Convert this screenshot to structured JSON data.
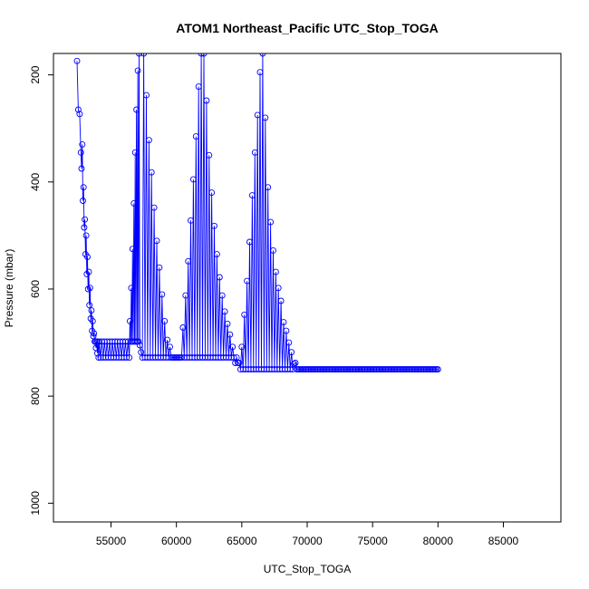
{
  "chart_data": {
    "type": "line",
    "title": "ATOM1 Northeast_Pacific UTC_Stop_TOGA",
    "xlabel": "UTC_Stop_TOGA",
    "ylabel": "Pressure (mbar)",
    "xlim": [
      50600,
      89400
    ],
    "ylim": [
      1035,
      160
    ],
    "y_inverted": true,
    "x_ticks": [
      55000,
      60000,
      65000,
      70000,
      75000,
      80000,
      85000
    ],
    "x_tick_labels": [
      "55000",
      "60000",
      "65000",
      "70000",
      "75000",
      "80000",
      "85000"
    ],
    "y_ticks": [
      200,
      400,
      600,
      800,
      1000
    ],
    "y_tick_labels": [
      "200",
      "400",
      "600",
      "800",
      "1000"
    ],
    "grid": false,
    "series_style": {
      "color": "#0000ff",
      "marker": "open-circle",
      "line": "solid"
    },
    "series": [
      {
        "points": [
          [
            52400,
            174
          ],
          [
            52500,
            265
          ],
          [
            52600,
            273
          ],
          [
            52700,
            345
          ],
          [
            52750,
            375
          ],
          [
            52800,
            330
          ],
          [
            52850,
            435
          ],
          [
            52900,
            410
          ],
          [
            52950,
            485
          ],
          [
            53000,
            470
          ],
          [
            53050,
            535
          ],
          [
            53100,
            500
          ],
          [
            53150,
            572
          ],
          [
            53200,
            540
          ],
          [
            53250,
            600
          ],
          [
            53300,
            568
          ],
          [
            53350,
            630
          ],
          [
            53400,
            598
          ],
          [
            53450,
            655
          ],
          [
            53500,
            640
          ],
          [
            53550,
            678
          ],
          [
            53600,
            660
          ],
          [
            53650,
            688
          ],
          [
            53700,
            683
          ],
          [
            53750,
            698
          ],
          [
            53800,
            698
          ],
          [
            53850,
            710
          ],
          [
            53900,
            698
          ],
          [
            53950,
            720
          ],
          [
            54000,
            698
          ],
          [
            54050,
            728
          ],
          [
            54100,
            698
          ],
          [
            54200,
            728
          ],
          [
            54300,
            698
          ],
          [
            54400,
            728
          ],
          [
            54500,
            698
          ],
          [
            54600,
            728
          ],
          [
            54700,
            698
          ],
          [
            54800,
            728
          ],
          [
            54900,
            698
          ],
          [
            55000,
            728
          ],
          [
            55100,
            698
          ],
          [
            55200,
            728
          ],
          [
            55300,
            698
          ],
          [
            55400,
            728
          ],
          [
            55500,
            698
          ],
          [
            55600,
            728
          ],
          [
            55700,
            698
          ],
          [
            55800,
            728
          ],
          [
            55900,
            698
          ],
          [
            56000,
            728
          ],
          [
            56100,
            698
          ],
          [
            56200,
            728
          ],
          [
            56300,
            698
          ],
          [
            56400,
            728
          ],
          [
            56450,
            660
          ],
          [
            56500,
            698
          ],
          [
            56550,
            598
          ],
          [
            56600,
            698
          ],
          [
            56650,
            525
          ],
          [
            56700,
            698
          ],
          [
            56750,
            440
          ],
          [
            56800,
            698
          ],
          [
            56850,
            345
          ],
          [
            56900,
            698
          ],
          [
            56950,
            265
          ],
          [
            57000,
            698
          ],
          [
            57050,
            192
          ],
          [
            57100,
            698
          ],
          [
            57150,
            160
          ],
          [
            57200,
            705
          ],
          [
            57300,
            718
          ],
          [
            57400,
            728
          ],
          [
            57500,
            160
          ],
          [
            57600,
            728
          ],
          [
            57700,
            238
          ],
          [
            57800,
            728
          ],
          [
            57900,
            322
          ],
          [
            58000,
            728
          ],
          [
            58100,
            382
          ],
          [
            58200,
            728
          ],
          [
            58300,
            448
          ],
          [
            58400,
            728
          ],
          [
            58500,
            510
          ],
          [
            58600,
            728
          ],
          [
            58700,
            560
          ],
          [
            58800,
            728
          ],
          [
            58900,
            610
          ],
          [
            59000,
            728
          ],
          [
            59100,
            660
          ],
          [
            59200,
            728
          ],
          [
            59300,
            695
          ],
          [
            59400,
            728
          ],
          [
            59500,
            708
          ],
          [
            59600,
            728
          ],
          [
            59700,
            728
          ],
          [
            59800,
            728
          ],
          [
            59900,
            728
          ],
          [
            60000,
            728
          ],
          [
            60100,
            728
          ],
          [
            60200,
            728
          ],
          [
            60300,
            728
          ],
          [
            60400,
            728
          ],
          [
            60500,
            672
          ],
          [
            60600,
            728
          ],
          [
            60700,
            612
          ],
          [
            60800,
            728
          ],
          [
            60900,
            548
          ],
          [
            61000,
            728
          ],
          [
            61100,
            472
          ],
          [
            61200,
            728
          ],
          [
            61300,
            395
          ],
          [
            61400,
            728
          ],
          [
            61500,
            315
          ],
          [
            61600,
            728
          ],
          [
            61700,
            222
          ],
          [
            61800,
            728
          ],
          [
            61900,
            160
          ],
          [
            62000,
            728
          ],
          [
            62100,
            160
          ],
          [
            62200,
            728
          ],
          [
            62300,
            248
          ],
          [
            62400,
            728
          ],
          [
            62500,
            350
          ],
          [
            62600,
            728
          ],
          [
            62700,
            420
          ],
          [
            62800,
            728
          ],
          [
            62900,
            482
          ],
          [
            63000,
            728
          ],
          [
            63100,
            535
          ],
          [
            63200,
            728
          ],
          [
            63300,
            578
          ],
          [
            63400,
            728
          ],
          [
            63500,
            612
          ],
          [
            63600,
            728
          ],
          [
            63700,
            642
          ],
          [
            63800,
            728
          ],
          [
            63900,
            665
          ],
          [
            64000,
            728
          ],
          [
            64100,
            685
          ],
          [
            64200,
            728
          ],
          [
            64300,
            708
          ],
          [
            64400,
            728
          ],
          [
            64500,
            738
          ],
          [
            64600,
            728
          ],
          [
            64700,
            738
          ],
          [
            64800,
            738
          ],
          [
            64900,
            750
          ],
          [
            65000,
            708
          ],
          [
            65100,
            750
          ],
          [
            65200,
            648
          ],
          [
            65300,
            750
          ],
          [
            65400,
            585
          ],
          [
            65500,
            750
          ],
          [
            65600,
            512
          ],
          [
            65700,
            750
          ],
          [
            65800,
            425
          ],
          [
            65900,
            750
          ],
          [
            66000,
            345
          ],
          [
            66100,
            750
          ],
          [
            66200,
            275
          ],
          [
            66300,
            750
          ],
          [
            66400,
            195
          ],
          [
            66500,
            750
          ],
          [
            66600,
            160
          ],
          [
            66700,
            750
          ],
          [
            66800,
            280
          ],
          [
            66900,
            750
          ],
          [
            67000,
            410
          ],
          [
            67100,
            750
          ],
          [
            67200,
            475
          ],
          [
            67300,
            750
          ],
          [
            67400,
            528
          ],
          [
            67500,
            750
          ],
          [
            67600,
            568
          ],
          [
            67700,
            750
          ],
          [
            67800,
            598
          ],
          [
            67900,
            750
          ],
          [
            68000,
            622
          ],
          [
            68100,
            750
          ],
          [
            68200,
            662
          ],
          [
            68300,
            750
          ],
          [
            68400,
            678
          ],
          [
            68500,
            750
          ],
          [
            68600,
            700
          ],
          [
            68700,
            750
          ],
          [
            68800,
            718
          ],
          [
            68900,
            750
          ],
          [
            69000,
            740
          ],
          [
            69100,
            738
          ],
          [
            69200,
            750
          ],
          [
            69300,
            750
          ],
          [
            69400,
            750
          ],
          [
            69500,
            750
          ],
          [
            69600,
            750
          ],
          [
            69700,
            750
          ],
          [
            69800,
            750
          ],
          [
            69900,
            750
          ],
          [
            70000,
            750
          ],
          [
            70100,
            750
          ],
          [
            70200,
            750
          ],
          [
            70300,
            750
          ],
          [
            70400,
            750
          ],
          [
            70500,
            750
          ],
          [
            70600,
            750
          ],
          [
            70700,
            750
          ],
          [
            70800,
            750
          ],
          [
            70900,
            750
          ],
          [
            71000,
            750
          ],
          [
            71100,
            750
          ],
          [
            71200,
            750
          ],
          [
            71300,
            750
          ],
          [
            71400,
            750
          ],
          [
            71500,
            750
          ],
          [
            71600,
            750
          ],
          [
            71700,
            750
          ],
          [
            71800,
            750
          ],
          [
            71900,
            750
          ],
          [
            72000,
            750
          ],
          [
            72100,
            750
          ],
          [
            72200,
            750
          ],
          [
            72300,
            750
          ],
          [
            72400,
            750
          ],
          [
            72500,
            750
          ],
          [
            72600,
            750
          ],
          [
            72700,
            750
          ],
          [
            72800,
            750
          ],
          [
            72900,
            750
          ],
          [
            73000,
            750
          ],
          [
            73100,
            750
          ],
          [
            73200,
            750
          ],
          [
            73300,
            750
          ],
          [
            73400,
            750
          ],
          [
            73500,
            750
          ],
          [
            73600,
            750
          ],
          [
            73700,
            750
          ],
          [
            73800,
            750
          ],
          [
            73900,
            750
          ],
          [
            74000,
            750
          ],
          [
            74100,
            750
          ],
          [
            74200,
            750
          ],
          [
            74300,
            750
          ],
          [
            74400,
            750
          ],
          [
            74500,
            750
          ],
          [
            74600,
            750
          ],
          [
            74700,
            750
          ],
          [
            74800,
            750
          ],
          [
            74900,
            750
          ],
          [
            75000,
            750
          ],
          [
            75100,
            750
          ],
          [
            75200,
            750
          ],
          [
            75300,
            750
          ],
          [
            75400,
            750
          ],
          [
            75500,
            750
          ],
          [
            75600,
            750
          ],
          [
            75700,
            750
          ],
          [
            75800,
            750
          ],
          [
            75900,
            750
          ],
          [
            76000,
            750
          ],
          [
            76100,
            750
          ],
          [
            76200,
            750
          ],
          [
            76300,
            750
          ],
          [
            76400,
            750
          ],
          [
            76500,
            750
          ],
          [
            76600,
            750
          ],
          [
            76700,
            750
          ],
          [
            76800,
            750
          ],
          [
            76900,
            750
          ],
          [
            77000,
            750
          ],
          [
            77100,
            750
          ],
          [
            77200,
            750
          ],
          [
            77300,
            750
          ],
          [
            77400,
            750
          ],
          [
            77500,
            750
          ],
          [
            77600,
            750
          ],
          [
            77700,
            750
          ],
          [
            77800,
            750
          ],
          [
            77900,
            750
          ],
          [
            78000,
            750
          ],
          [
            78100,
            750
          ],
          [
            78200,
            750
          ],
          [
            78300,
            750
          ],
          [
            78400,
            750
          ],
          [
            78500,
            750
          ],
          [
            78600,
            750
          ],
          [
            78700,
            750
          ],
          [
            78800,
            750
          ],
          [
            78900,
            750
          ],
          [
            79000,
            750
          ],
          [
            79100,
            750
          ],
          [
            79200,
            750
          ],
          [
            79300,
            750
          ],
          [
            79400,
            750
          ],
          [
            79500,
            750
          ],
          [
            79600,
            750
          ],
          [
            79700,
            750
          ],
          [
            79800,
            750
          ],
          [
            79900,
            750
          ],
          [
            80000,
            750
          ]
        ]
      }
    ]
  }
}
